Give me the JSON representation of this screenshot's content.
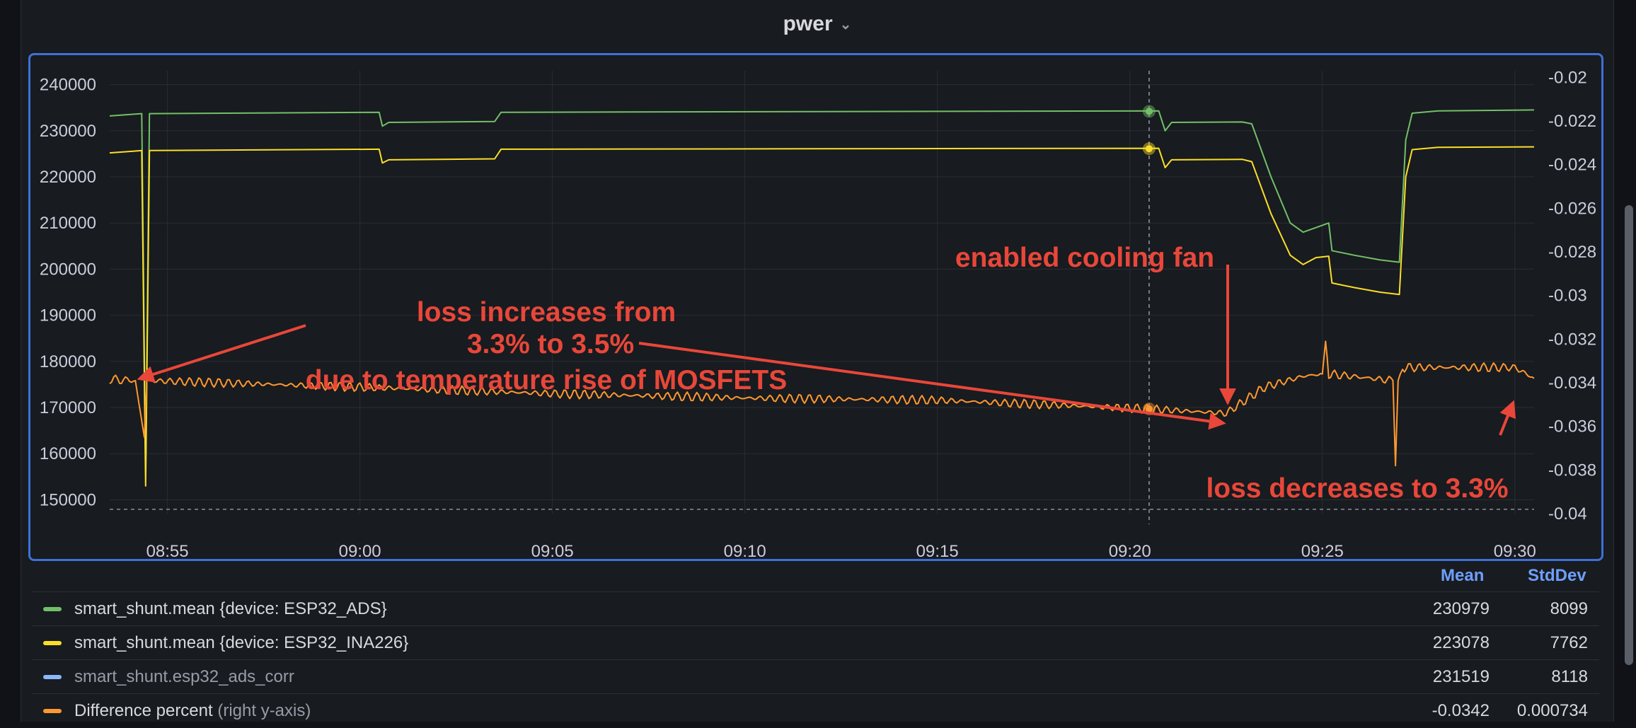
{
  "panel": {
    "title": "pwer"
  },
  "legend": {
    "headers": {
      "mean": "Mean",
      "stddev": "StdDev"
    },
    "rows": [
      {
        "name": "smart_shunt.mean {device: ESP32_ADS}",
        "suffix": "",
        "color": "#73bf69",
        "mean": "230979",
        "stddev": "8099",
        "muted": false
      },
      {
        "name": "smart_shunt.mean {device: ESP32_INA226}",
        "suffix": "",
        "color": "#fade2a",
        "mean": "223078",
        "stddev": "7762",
        "muted": false
      },
      {
        "name": "smart_shunt.esp32_ads_corr",
        "suffix": "",
        "color": "#8ab8ff",
        "mean": "231519",
        "stddev": "8118",
        "muted": true
      },
      {
        "name": "Difference percent",
        "suffix": "(right y-axis)",
        "color": "#ff9830",
        "mean": "-0.0342",
        "stddev": "0.000734",
        "muted": false
      }
    ]
  },
  "annotations": {
    "loss_increase": [
      "loss increases from",
      "3.3% to 3.5%",
      "due to temperature rise of MOSFETS"
    ],
    "fan": "enabled cooling fan",
    "loss_decrease": "loss decreases to 3.3%",
    "color": "#e8473a"
  },
  "chart_data": {
    "type": "line",
    "x_ticks": [
      "08:55",
      "09:00",
      "09:05",
      "09:10",
      "09:15",
      "09:20",
      "09:25",
      "09:30"
    ],
    "x_range": [
      "08:53:30",
      "09:30:30"
    ],
    "y_left": {
      "ticks": [
        240000,
        230000,
        220000,
        210000,
        200000,
        190000,
        180000,
        170000,
        160000,
        150000
      ],
      "range": [
        147000,
        243000
      ]
    },
    "y_right": {
      "ticks": [
        -0.02,
        -0.022,
        -0.024,
        -0.026,
        -0.028,
        -0.03,
        -0.032,
        -0.034,
        -0.036,
        -0.038,
        -0.04
      ],
      "range": [
        -0.04,
        -0.0197
      ]
    },
    "hover_time": "09:20:30",
    "series": [
      {
        "name": "smart_shunt.mean {device: ESP32_ADS}",
        "axis": "left",
        "color": "#73bf69",
        "points": [
          [
            "08:53:30",
            233200
          ],
          [
            "08:54:10",
            233600
          ],
          [
            "08:54:20",
            233700
          ],
          [
            "08:54:26",
            156000
          ],
          [
            "08:54:32",
            233700
          ],
          [
            "09:00:30",
            234000
          ],
          [
            "09:00:35",
            231000
          ],
          [
            "09:00:45",
            231800
          ],
          [
            "09:03:30",
            232000
          ],
          [
            "09:03:40",
            234000
          ],
          [
            "09:20:45",
            234300
          ],
          [
            "09:20:55",
            230000
          ],
          [
            "09:21:05",
            231800
          ],
          [
            "09:22:55",
            231900
          ],
          [
            "09:23:10",
            231500
          ],
          [
            "09:23:40",
            220000
          ],
          [
            "09:24:10",
            210000
          ],
          [
            "09:24:30",
            208000
          ],
          [
            "09:24:50",
            209000
          ],
          [
            "09:25:10",
            210000
          ],
          [
            "09:25:15",
            204000
          ],
          [
            "09:25:50",
            203000
          ],
          [
            "09:26:30",
            202000
          ],
          [
            "09:27:00",
            201500
          ],
          [
            "09:27:10",
            228000
          ],
          [
            "09:27:20",
            233800
          ],
          [
            "09:28:00",
            234300
          ],
          [
            "09:30:30",
            234500
          ]
        ]
      },
      {
        "name": "smart_shunt.mean {device: ESP32_INA226}",
        "axis": "left",
        "color": "#fade2a",
        "points": [
          [
            "08:53:30",
            225200
          ],
          [
            "08:54:10",
            225600
          ],
          [
            "08:54:20",
            225700
          ],
          [
            "08:54:26",
            153000
          ],
          [
            "08:54:32",
            225700
          ],
          [
            "09:00:30",
            226000
          ],
          [
            "09:00:35",
            223000
          ],
          [
            "09:00:45",
            223700
          ],
          [
            "09:03:30",
            223900
          ],
          [
            "09:03:40",
            226000
          ],
          [
            "09:20:45",
            226200
          ],
          [
            "09:20:55",
            222000
          ],
          [
            "09:21:05",
            223700
          ],
          [
            "09:22:55",
            223800
          ],
          [
            "09:23:10",
            223300
          ],
          [
            "09:23:40",
            212000
          ],
          [
            "09:24:10",
            203000
          ],
          [
            "09:24:30",
            201000
          ],
          [
            "09:24:50",
            202500
          ],
          [
            "09:25:10",
            202800
          ],
          [
            "09:25:15",
            197000
          ],
          [
            "09:25:50",
            196000
          ],
          [
            "09:26:30",
            195000
          ],
          [
            "09:27:00",
            194500
          ],
          [
            "09:27:10",
            220000
          ],
          [
            "09:27:20",
            225900
          ],
          [
            "09:28:00",
            226400
          ],
          [
            "09:30:30",
            226500
          ]
        ]
      },
      {
        "name": "Difference percent",
        "axis": "right",
        "color": "#ff9830",
        "points": [
          [
            "08:53:30",
            -0.03385
          ],
          [
            "08:54:10",
            -0.0339
          ],
          [
            "08:54:24",
            -0.0365
          ],
          [
            "08:54:28",
            -0.0339
          ],
          [
            "09:00:00",
            -0.0342
          ],
          [
            "09:05:00",
            -0.0345
          ],
          [
            "09:10:00",
            -0.0347
          ],
          [
            "09:15:00",
            -0.0348
          ],
          [
            "09:20:30",
            -0.0352
          ],
          [
            "09:22:30",
            -0.0354
          ],
          [
            "09:23:30",
            -0.0342
          ],
          [
            "09:24:30",
            -0.0337
          ],
          [
            "09:25:00",
            -0.0336
          ],
          [
            "09:25:05",
            -0.0321
          ],
          [
            "09:25:10",
            -0.0336
          ],
          [
            "09:26:50",
            -0.0339
          ],
          [
            "09:26:54",
            -0.0378
          ],
          [
            "09:26:58",
            -0.0339
          ],
          [
            "09:27:05",
            -0.0333
          ],
          [
            "09:30:00",
            -0.0333
          ],
          [
            "09:30:30",
            -0.0338
          ]
        ]
      }
    ]
  }
}
